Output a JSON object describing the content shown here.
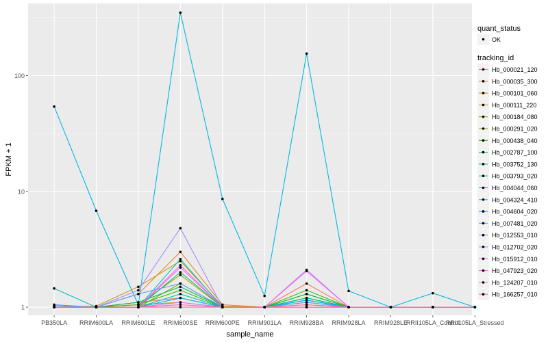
{
  "chart_data": {
    "type": "line",
    "xlabel": "sample_name",
    "ylabel": "FPKM + 1",
    "y_scale": "log10",
    "ylim": [
      0.85,
      420
    ],
    "y_ticks": [
      1,
      10,
      100
    ],
    "y_tick_labels": [
      "1",
      "10",
      "100"
    ],
    "grid": true,
    "legend_position": "right",
    "categories": [
      "PB350LA",
      "RRIM600LA",
      "RRIM600LE",
      "RRIM600SE",
      "RRIM600PE",
      "RRIM901LA",
      "RRIM928BA",
      "RRIM928LA",
      "RRIM928LE",
      "RRII105LA_Control",
      "RRII105LA_Stressed"
    ],
    "shape_legend": {
      "title": "quant_status",
      "items": [
        "OK"
      ]
    },
    "color_legend_title": "tracking_id",
    "series": [
      {
        "name": "Hb_000021_120",
        "color": "#F8766D",
        "values": [
          1.0,
          1.0,
          1.1,
          1.2,
          1.0,
          1.0,
          1.6,
          1.0,
          1.0,
          1.0,
          1.0
        ]
      },
      {
        "name": "Hb_000035_300",
        "color": "#EA8331",
        "values": [
          1.0,
          1.0,
          1.3,
          3.0,
          1.05,
          1.0,
          1.1,
          1.0,
          1.0,
          1.0,
          1.0
        ]
      },
      {
        "name": "Hb_000101_060",
        "color": "#D89000",
        "values": [
          1.0,
          1.0,
          1.05,
          1.1,
          1.0,
          1.0,
          1.05,
          1.0,
          1.0,
          1.0,
          1.0
        ]
      },
      {
        "name": "Hb_000111_220",
        "color": "#C09B00",
        "values": [
          1.0,
          1.02,
          1.5,
          2.5,
          1.02,
          1.0,
          1.0,
          1.0,
          1.0,
          1.0,
          1.0
        ]
      },
      {
        "name": "Hb_000184_080",
        "color": "#A3A500",
        "values": [
          1.0,
          1.0,
          1.05,
          1.9,
          1.0,
          1.0,
          1.3,
          1.0,
          1.0,
          1.0,
          1.0
        ]
      },
      {
        "name": "Hb_000291_020",
        "color": "#7CAE00",
        "values": [
          1.0,
          1.0,
          1.0,
          1.6,
          1.0,
          1.0,
          1.2,
          1.0,
          1.0,
          1.0,
          1.0
        ]
      },
      {
        "name": "Hb_000438_040",
        "color": "#39B600",
        "values": [
          1.0,
          1.0,
          1.05,
          1.4,
          1.0,
          1.0,
          1.4,
          1.0,
          1.0,
          1.0,
          1.0
        ]
      },
      {
        "name": "Hb_002787_100",
        "color": "#00BB4E",
        "values": [
          1.0,
          1.0,
          1.1,
          1.5,
          1.0,
          1.0,
          1.3,
          1.0,
          1.0,
          1.0,
          1.0
        ]
      },
      {
        "name": "Hb_003752_130",
        "color": "#00BF7D",
        "values": [
          1.0,
          1.0,
          1.0,
          2.0,
          1.0,
          1.0,
          1.2,
          1.0,
          1.0,
          1.0,
          1.0
        ]
      },
      {
        "name": "Hb_003793_020",
        "color": "#00C1A3",
        "values": [
          1.0,
          1.0,
          1.0,
          1.3,
          1.0,
          1.0,
          1.1,
          1.0,
          1.0,
          1.0,
          1.0
        ]
      },
      {
        "name": "Hb_004044_060",
        "color": "#00BFC4",
        "values": [
          1.45,
          1.0,
          1.0,
          2.6,
          1.0,
          1.0,
          1.15,
          1.0,
          1.0,
          1.0,
          1.0
        ]
      },
      {
        "name": "Hb_004324_410",
        "color": "#00B8E5",
        "values": [
          54.0,
          6.8,
          1.05,
          350.0,
          8.6,
          1.25,
          155.0,
          1.38,
          1.0,
          1.32,
          1.0
        ]
      },
      {
        "name": "Hb_004604_020",
        "color": "#00ABFD",
        "values": [
          1.05,
          1.0,
          1.0,
          1.2,
          1.0,
          1.0,
          1.15,
          1.0,
          1.0,
          1.0,
          1.0
        ]
      },
      {
        "name": "Hb_007481_020",
        "color": "#619CFF",
        "values": [
          1.03,
          1.0,
          1.3,
          1.6,
          1.0,
          1.0,
          1.1,
          1.0,
          1.0,
          1.0,
          1.0
        ]
      },
      {
        "name": "Hb_012553_010",
        "color": "#A58AFF",
        "values": [
          1.0,
          1.0,
          1.4,
          4.8,
          1.0,
          1.0,
          1.0,
          1.0,
          1.0,
          1.0,
          1.0
        ]
      },
      {
        "name": "Hb_012702_020",
        "color": "#C77CFF",
        "values": [
          1.0,
          1.0,
          1.0,
          1.1,
          1.0,
          1.0,
          2.1,
          1.0,
          1.0,
          1.0,
          1.0
        ]
      },
      {
        "name": "Hb_015912_010",
        "color": "#E76BF3",
        "values": [
          1.0,
          1.0,
          1.0,
          2.2,
          1.0,
          1.0,
          2.05,
          1.0,
          1.0,
          1.0,
          1.0
        ]
      },
      {
        "name": "Hb_047923_020",
        "color": "#FA62DB",
        "values": [
          1.0,
          1.0,
          1.0,
          2.3,
          1.0,
          1.0,
          1.0,
          1.0,
          1.0,
          1.0,
          1.0
        ]
      },
      {
        "name": "Hb_124207_010",
        "color": "#FF62BC",
        "values": [
          1.0,
          1.0,
          1.0,
          1.05,
          1.0,
          1.0,
          1.0,
          1.0,
          1.0,
          1.0,
          1.0
        ]
      },
      {
        "name": "Hb_166257_010",
        "color": "#FF6C91",
        "values": [
          1.0,
          1.0,
          1.0,
          1.0,
          1.0,
          1.0,
          1.05,
          1.0,
          1.0,
          1.0,
          1.0
        ]
      }
    ]
  }
}
